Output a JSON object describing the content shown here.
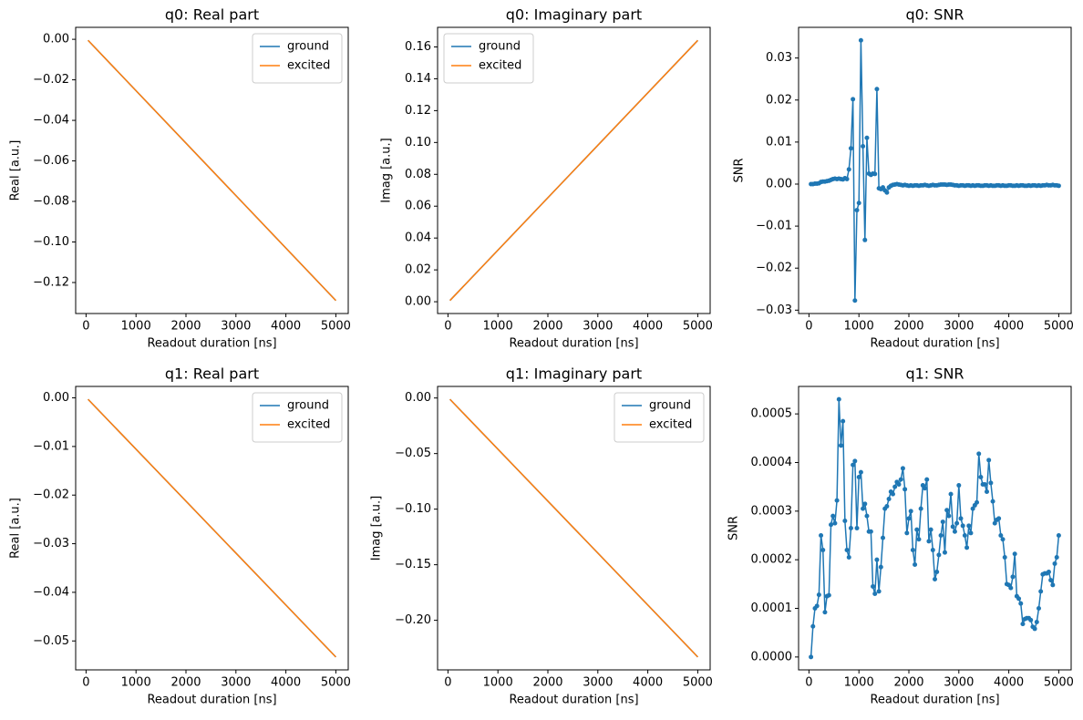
{
  "chart_data": [
    {
      "type": "line",
      "title": "q0: Real part",
      "x_label": "Readout duration [ns]",
      "y_label": "Real [a.u.]",
      "x": [
        40,
        5000
      ],
      "series": [
        {
          "name": "ground",
          "color": "#1f77b4",
          "values": [
            -0.0005,
            -0.1289
          ]
        },
        {
          "name": "excited",
          "color": "#ff7f0e",
          "values": [
            -0.0005,
            -0.1289
          ]
        }
      ],
      "xlim": [
        -208,
        5248
      ],
      "xticks": [
        0,
        1000,
        2000,
        3000,
        4000,
        5000
      ],
      "ylim": [
        -0.1353,
        0.0059
      ],
      "yticks": [
        {
          "value": -0.12,
          "label": "−0.12"
        },
        {
          "value": -0.1,
          "label": "−0.10"
        },
        {
          "value": -0.08,
          "label": "−0.08"
        },
        {
          "value": -0.06,
          "label": "−0.06"
        },
        {
          "value": -0.04,
          "label": "−0.04"
        },
        {
          "value": -0.02,
          "label": "−0.02"
        },
        {
          "value": 0,
          "label": "0.00"
        }
      ],
      "legend": "upper right"
    },
    {
      "type": "line",
      "title": "q0: Imaginary part",
      "x_label": "Readout duration [ns]",
      "y_label": "Imag [a.u.]",
      "x": [
        40,
        5000
      ],
      "series": [
        {
          "name": "ground",
          "color": "#1f77b4",
          "values": [
            0.0008,
            0.1641
          ]
        },
        {
          "name": "excited",
          "color": "#ff7f0e",
          "values": [
            0.0008,
            0.1641
          ]
        }
      ],
      "xlim": [
        -208,
        5248
      ],
      "xticks": [
        0,
        1000,
        2000,
        3000,
        4000,
        5000
      ],
      "ylim": [
        -0.0074,
        0.1723
      ],
      "yticks": [
        {
          "value": 0,
          "label": "0.00"
        },
        {
          "value": 0.02,
          "label": "0.02"
        },
        {
          "value": 0.04,
          "label": "0.04"
        },
        {
          "value": 0.06,
          "label": "0.06"
        },
        {
          "value": 0.08,
          "label": "0.08"
        },
        {
          "value": 0.1,
          "label": "0.10"
        },
        {
          "value": 0.12,
          "label": "0.12"
        },
        {
          "value": 0.14,
          "label": "0.14"
        },
        {
          "value": 0.16,
          "label": "0.16"
        }
      ],
      "legend": "upper left"
    },
    {
      "type": "line",
      "title": "q0: SNR",
      "x_label": "Readout duration [ns]",
      "y_label": "SNR",
      "markers": true,
      "x": [
        40,
        80,
        120,
        160,
        200,
        240,
        280,
        320,
        360,
        400,
        440,
        480,
        520,
        560,
        600,
        640,
        680,
        720,
        760,
        800,
        840,
        880,
        920,
        960,
        1000,
        1040,
        1080,
        1120,
        1160,
        1200,
        1240,
        1280,
        1320,
        1360,
        1400,
        1440,
        1480,
        1520,
        1560,
        1600,
        1640,
        1680,
        1720,
        1760,
        1800,
        1840,
        1880,
        1920,
        1960,
        2000,
        2040,
        2080,
        2120,
        2160,
        2200,
        2240,
        2280,
        2320,
        2360,
        2400,
        2440,
        2480,
        2520,
        2560,
        2600,
        2640,
        2680,
        2720,
        2760,
        2800,
        2840,
        2880,
        2920,
        2960,
        3000,
        3040,
        3080,
        3120,
        3160,
        3200,
        3240,
        3280,
        3320,
        3360,
        3400,
        3440,
        3480,
        3520,
        3560,
        3600,
        3640,
        3680,
        3720,
        3760,
        3800,
        3840,
        3880,
        3920,
        3960,
        4000,
        4040,
        4080,
        4120,
        4160,
        4200,
        4240,
        4280,
        4320,
        4360,
        4400,
        4440,
        4480,
        4520,
        4560,
        4600,
        4640,
        4680,
        4720,
        4760,
        4800,
        4840,
        4880,
        4920,
        4960,
        5000
      ],
      "series": [
        {
          "color": "#1f77b4",
          "values": [
            0,
            0,
            0.0001,
            0.0001,
            0.0002,
            0.0005,
            0.0006,
            0.0006,
            0.0007,
            0.0008,
            0.001,
            0.0012,
            0.0013,
            0.0012,
            0.0013,
            0.0012,
            0.0011,
            0.0014,
            0.0012,
            0.0035,
            0.0085,
            0.0202,
            -0.0277,
            -0.0062,
            -0.0045,
            0.0342,
            0.009,
            -0.0133,
            0.011,
            0.0025,
            0.0022,
            0.0025,
            0.0024,
            0.0226,
            -0.001,
            -0.0012,
            -0.0008,
            -0.0015,
            -0.002,
            -0.0008,
            -0.0004,
            -0.0002,
            -0.0001,
            0,
            -0.0001,
            -0.0002,
            -0.0003,
            -0.0002,
            -0.0003,
            -0.0004,
            -0.0003,
            -0.0004,
            -0.0003,
            -0.0003,
            -0.0004,
            -0.0003,
            -0.0003,
            -0.0002,
            -0.0003,
            -0.0004,
            -0.0003,
            -0.0002,
            -0.0003,
            -0.0003,
            -0.0002,
            -0.0001,
            -0.0001,
            -0.0001,
            -0.0002,
            -0.0001,
            -0.0001,
            -0.0002,
            -0.0003,
            -0.0003,
            -0.0004,
            -0.0003,
            -0.0003,
            -0.0004,
            -0.0003,
            -0.0003,
            -0.0004,
            -0.0003,
            -0.0004,
            -0.0003,
            -0.0003,
            -0.0004,
            -0.0004,
            -0.0003,
            -0.0003,
            -0.0004,
            -0.0003,
            -0.0004,
            -0.0004,
            -0.0003,
            -0.0003,
            -0.0004,
            -0.0003,
            -0.0004,
            -0.0004,
            -0.0003,
            -0.0003,
            -0.0004,
            -0.0004,
            -0.0003,
            -0.0004,
            -0.0003,
            -0.0003,
            -0.0004,
            -0.0004,
            -0.0003,
            -0.0004,
            -0.0003,
            -0.0003,
            -0.0004,
            -0.0003,
            -0.0004,
            -0.0003,
            -0.0003,
            -0.0002,
            -0.0003,
            -0.0003,
            -0.0002,
            -0.0003,
            -0.0003,
            -0.0004
          ]
        }
      ],
      "xlim": [
        -208,
        5248
      ],
      "xticks": [
        0,
        1000,
        2000,
        3000,
        4000,
        5000
      ],
      "ylim": [
        -0.0308,
        0.0373
      ],
      "yticks": [
        {
          "value": -0.03,
          "label": "−0.03"
        },
        {
          "value": -0.02,
          "label": "−0.02"
        },
        {
          "value": -0.01,
          "label": "−0.01"
        },
        {
          "value": 0,
          "label": "0.00"
        },
        {
          "value": 0.01,
          "label": "0.01"
        },
        {
          "value": 0.02,
          "label": "0.02"
        },
        {
          "value": 0.03,
          "label": "0.03"
        }
      ]
    },
    {
      "type": "line",
      "title": "q1: Real part",
      "x_label": "Readout duration [ns]",
      "y_label": "Real [a.u.]",
      "x": [
        40,
        5000
      ],
      "series": [
        {
          "name": "ground",
          "color": "#1f77b4",
          "values": [
            -0.0003,
            -0.0533
          ]
        },
        {
          "name": "excited",
          "color": "#ff7f0e",
          "values": [
            -0.0003,
            -0.0533
          ]
        }
      ],
      "xlim": [
        -208,
        5248
      ],
      "xticks": [
        0,
        1000,
        2000,
        3000,
        4000,
        5000
      ],
      "ylim": [
        -0.05595,
        0.00235
      ],
      "yticks": [
        {
          "value": -0.05,
          "label": "−0.05"
        },
        {
          "value": -0.04,
          "label": "−0.04"
        },
        {
          "value": -0.03,
          "label": "−0.03"
        },
        {
          "value": -0.02,
          "label": "−0.02"
        },
        {
          "value": -0.01,
          "label": "−0.01"
        },
        {
          "value": 0,
          "label": "0.00"
        }
      ],
      "legend": "upper right"
    },
    {
      "type": "line",
      "title": "q1: Imaginary part",
      "x_label": "Readout duration [ns]",
      "y_label": "Imag [a.u.]",
      "x": [
        40,
        5000
      ],
      "series": [
        {
          "name": "ground",
          "color": "#1f77b4",
          "values": [
            -0.0012,
            -0.233
          ]
        },
        {
          "name": "excited",
          "color": "#ff7f0e",
          "values": [
            -0.0012,
            -0.233
          ]
        }
      ],
      "xlim": [
        -208,
        5248
      ],
      "xticks": [
        0,
        1000,
        2000,
        3000,
        4000,
        5000
      ],
      "ylim": [
        -0.2446,
        0.0104
      ],
      "yticks": [
        {
          "value": -0.2,
          "label": "−0.20"
        },
        {
          "value": -0.15,
          "label": "−0.15"
        },
        {
          "value": -0.1,
          "label": "−0.10"
        },
        {
          "value": -0.05,
          "label": "−0.05"
        },
        {
          "value": 0,
          "label": "0.00"
        }
      ],
      "legend": "upper right"
    },
    {
      "type": "line",
      "title": "q1: SNR",
      "x_label": "Readout duration [ns]",
      "y_label": "SNR",
      "markers": true,
      "x": [
        40,
        80,
        120,
        160,
        200,
        240,
        280,
        320,
        360,
        400,
        440,
        480,
        520,
        560,
        600,
        640,
        680,
        720,
        760,
        800,
        840,
        880,
        920,
        960,
        1000,
        1040,
        1080,
        1120,
        1160,
        1200,
        1240,
        1280,
        1320,
        1360,
        1400,
        1440,
        1480,
        1520,
        1560,
        1600,
        1640,
        1680,
        1720,
        1760,
        1800,
        1840,
        1880,
        1920,
        1960,
        2000,
        2040,
        2080,
        2120,
        2160,
        2200,
        2240,
        2280,
        2320,
        2360,
        2400,
        2440,
        2480,
        2520,
        2560,
        2600,
        2640,
        2680,
        2720,
        2760,
        2800,
        2840,
        2880,
        2920,
        2960,
        3000,
        3040,
        3080,
        3120,
        3160,
        3200,
        3240,
        3280,
        3320,
        3360,
        3400,
        3440,
        3480,
        3520,
        3560,
        3600,
        3640,
        3680,
        3720,
        3760,
        3800,
        3840,
        3880,
        3920,
        3960,
        4000,
        4040,
        4080,
        4120,
        4160,
        4200,
        4240,
        4280,
        4320,
        4360,
        4400,
        4440,
        4480,
        4520,
        4560,
        4600,
        4640,
        4680,
        4720,
        4760,
        4800,
        4840,
        4880,
        4920,
        4960,
        5000
      ],
      "series": [
        {
          "color": "#1f77b4",
          "values": [
            0,
            6.3e-05,
            0.0001,
            0.000105,
            0.000128,
            0.00025,
            0.00022,
            9.2e-05,
            0.000125,
            0.000127,
            0.000272,
            0.00029,
            0.000275,
            0.000322,
            0.00053,
            0.000435,
            0.000485,
            0.00028,
            0.00022,
            0.000205,
            0.000265,
            0.000395,
            0.000403,
            0.000265,
            0.00037,
            0.00038,
            0.000305,
            0.000315,
            0.00029,
            0.000258,
            0.000258,
            0.000145,
            0.00013,
            0.0002,
            0.000135,
            0.000185,
            0.000245,
            0.000305,
            0.00031,
            0.000325,
            0.00034,
            0.000335,
            0.00035,
            0.00036,
            0.000355,
            0.000365,
            0.000388,
            0.000345,
            0.000255,
            0.000285,
            0.0003,
            0.00022,
            0.00019,
            0.000262,
            0.000242,
            0.000305,
            0.000353,
            0.000347,
            0.000365,
            0.000238,
            0.000262,
            0.00022,
            0.00016,
            0.000175,
            0.00021,
            0.00025,
            0.000278,
            0.000215,
            0.000302,
            0.00029,
            0.000335,
            0.000268,
            0.000258,
            0.000275,
            0.000353,
            0.000285,
            0.00027,
            0.00025,
            0.000225,
            0.00027,
            0.000255,
            0.000305,
            0.000312,
            0.000318,
            0.000418,
            0.00037,
            0.000355,
            0.000355,
            0.00034,
            0.000405,
            0.000358,
            0.00032,
            0.000275,
            0.000282,
            0.000285,
            0.00025,
            0.000242,
            0.000205,
            0.00015,
            0.000148,
            0.000142,
            0.000165,
            0.000212,
            0.000125,
            0.00012,
            0.00011,
            6.8e-05,
            7.8e-05,
            8e-05,
            8e-05,
            7.6e-05,
            6.2e-05,
            5.8e-05,
            7.2e-05,
            0.0001,
            0.000135,
            0.00017,
            0.000172,
            0.000172,
            0.000175,
            0.000158,
            0.000148,
            0.000192,
            0.000205,
            0.00025
          ]
        }
      ],
      "xlim": [
        -208,
        5248
      ],
      "xticks": [
        0,
        1000,
        2000,
        3000,
        4000,
        5000
      ],
      "ylim": [
        -2.65e-05,
        0.0005565
      ],
      "yticks": [
        {
          "value": 0,
          "label": "0.0000"
        },
        {
          "value": 0.0001,
          "label": "0.0001"
        },
        {
          "value": 0.0002,
          "label": "0.0002"
        },
        {
          "value": 0.0003,
          "label": "0.0003"
        },
        {
          "value": 0.0004,
          "label": "0.0004"
        },
        {
          "value": 0.0005,
          "label": "0.0005"
        }
      ]
    }
  ]
}
